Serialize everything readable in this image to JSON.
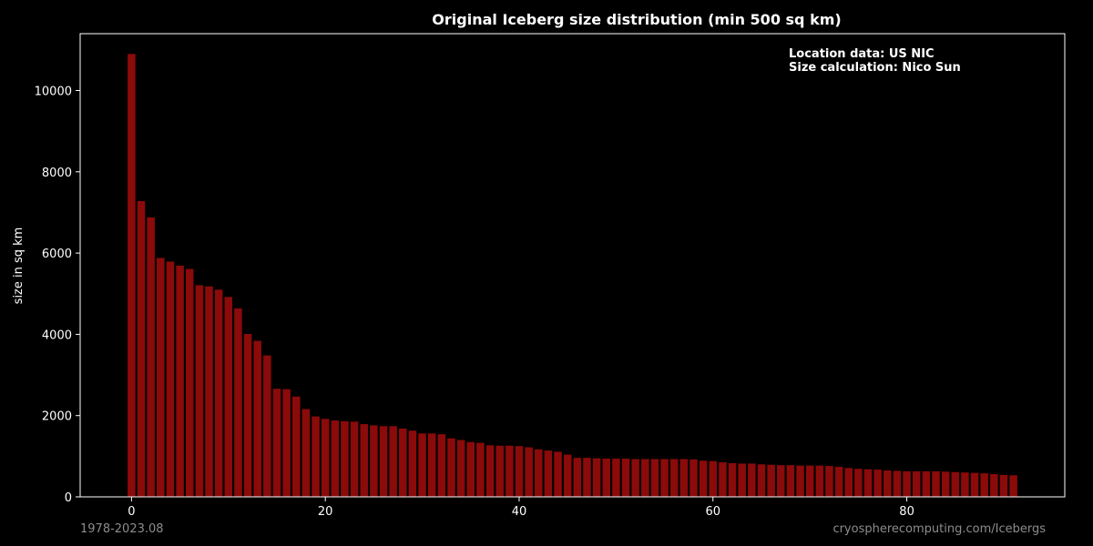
{
  "chart_data": {
    "type": "bar",
    "title": "Original Iceberg size distribution (min 500 sq km)",
    "xlabel": "",
    "ylabel": "size in sq km",
    "xlim": [
      -5.3,
      96.3
    ],
    "ylim": [
      0,
      11400
    ],
    "xticks": [
      0,
      20,
      40,
      60,
      80
    ],
    "yticks": [
      0,
      2000,
      4000,
      6000,
      8000,
      10000
    ],
    "grid": false,
    "bar_color": "#8b0a0a",
    "annotations": [
      "Location data: US NIC",
      "Size calculation: Nico Sun"
    ],
    "x": [
      0,
      1,
      2,
      3,
      4,
      5,
      6,
      7,
      8,
      9,
      10,
      11,
      12,
      13,
      14,
      15,
      16,
      17,
      18,
      19,
      20,
      21,
      22,
      23,
      24,
      25,
      26,
      27,
      28,
      29,
      30,
      31,
      32,
      33,
      34,
      35,
      36,
      37,
      38,
      39,
      40,
      41,
      42,
      43,
      44,
      45,
      46,
      47,
      48,
      49,
      50,
      51,
      52,
      53,
      54,
      55,
      56,
      57,
      58,
      59,
      60,
      61,
      62,
      63,
      64,
      65,
      66,
      67,
      68,
      69,
      70,
      71,
      72,
      73,
      74,
      75,
      76,
      77,
      78,
      79,
      80,
      81,
      82,
      83,
      84,
      85,
      86,
      87,
      88,
      89,
      90,
      91
    ],
    "values": [
      10900,
      7280,
      6880,
      5880,
      5790,
      5690,
      5610,
      5210,
      5180,
      5100,
      4920,
      4640,
      4010,
      3840,
      3480,
      2660,
      2650,
      2470,
      2160,
      1980,
      1920,
      1880,
      1860,
      1850,
      1790,
      1760,
      1740,
      1740,
      1680,
      1630,
      1560,
      1560,
      1540,
      1440,
      1400,
      1350,
      1330,
      1270,
      1260,
      1260,
      1250,
      1220,
      1170,
      1140,
      1110,
      1040,
      960,
      960,
      950,
      940,
      940,
      940,
      930,
      930,
      930,
      930,
      930,
      930,
      920,
      890,
      880,
      850,
      830,
      820,
      820,
      800,
      790,
      780,
      780,
      770,
      770,
      770,
      760,
      740,
      710,
      690,
      680,
      670,
      650,
      640,
      630,
      630,
      630,
      630,
      620,
      610,
      600,
      590,
      580,
      560,
      540,
      530
    ]
  },
  "footer": {
    "date_range": "1978-2023.08",
    "source": "cryospherecomputing.com/Icebergs"
  },
  "colors": {
    "background": "#000000",
    "axis": "#ffffff",
    "footer": "#8c8c8c"
  }
}
